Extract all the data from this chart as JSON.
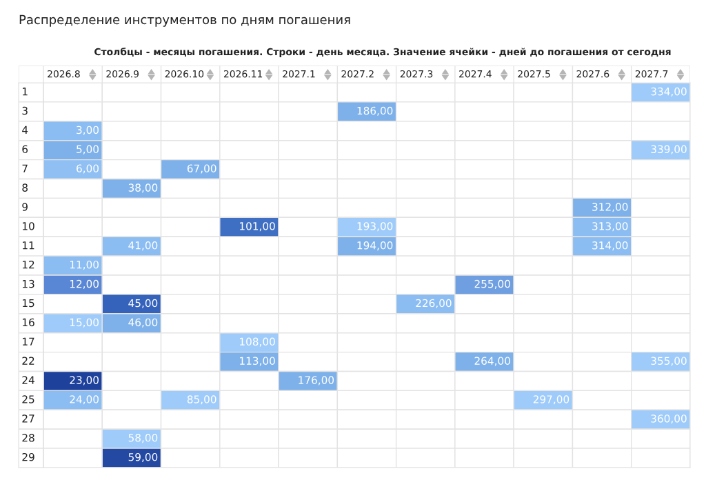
{
  "chart_data": {
    "type": "heatmap",
    "title": "Распределение инструментов по дням погашения",
    "subtitle": "Столбцы - месяцы погашения. Строки - день месяца. Значение ячейки - дней до погашения от сегодня",
    "categories": [
      "2026.8",
      "2026.9",
      "2026.10",
      "2026.11",
      "2027.1",
      "2027.2",
      "2027.3",
      "2027.4",
      "2027.5",
      "2027.6",
      "2027.7"
    ],
    "y_categories": [
      "1",
      "3",
      "4",
      "6",
      "7",
      "8",
      "9",
      "10",
      "11",
      "12",
      "13",
      "15",
      "16",
      "17",
      "22",
      "24",
      "25",
      "27",
      "28",
      "29"
    ],
    "cells": [
      [
        null,
        null,
        null,
        null,
        null,
        null,
        null,
        null,
        null,
        null,
        334
      ],
      [
        null,
        null,
        null,
        null,
        null,
        186,
        null,
        null,
        null,
        null,
        null
      ],
      [
        3,
        null,
        null,
        null,
        null,
        null,
        null,
        null,
        null,
        null,
        null
      ],
      [
        5,
        null,
        null,
        null,
        null,
        null,
        null,
        null,
        null,
        null,
        339
      ],
      [
        6,
        null,
        67,
        null,
        null,
        null,
        null,
        null,
        null,
        null,
        null
      ],
      [
        null,
        38,
        null,
        null,
        null,
        null,
        null,
        null,
        null,
        null,
        null
      ],
      [
        null,
        null,
        null,
        null,
        null,
        null,
        null,
        null,
        null,
        312,
        null
      ],
      [
        null,
        null,
        null,
        101,
        null,
        193,
        null,
        null,
        null,
        313,
        null
      ],
      [
        null,
        41,
        null,
        null,
        null,
        194,
        null,
        null,
        null,
        314,
        null
      ],
      [
        11,
        null,
        null,
        null,
        null,
        null,
        null,
        null,
        null,
        null,
        null
      ],
      [
        12,
        null,
        null,
        null,
        null,
        null,
        null,
        255,
        null,
        null,
        null
      ],
      [
        null,
        45,
        null,
        null,
        null,
        null,
        226,
        null,
        null,
        null,
        null
      ],
      [
        15,
        46,
        null,
        null,
        null,
        null,
        null,
        null,
        null,
        null,
        null
      ],
      [
        null,
        null,
        null,
        108,
        null,
        null,
        null,
        null,
        null,
        null,
        null
      ],
      [
        null,
        null,
        null,
        113,
        null,
        null,
        null,
        264,
        null,
        null,
        355
      ],
      [
        23,
        null,
        null,
        null,
        176,
        null,
        null,
        null,
        null,
        null,
        null
      ],
      [
        24,
        null,
        85,
        null,
        null,
        null,
        null,
        null,
        297,
        null,
        null
      ],
      [
        null,
        null,
        null,
        null,
        null,
        null,
        null,
        null,
        null,
        null,
        360
      ],
      [
        null,
        58,
        null,
        null,
        null,
        null,
        null,
        null,
        null,
        null,
        null
      ],
      [
        null,
        59,
        null,
        null,
        null,
        null,
        null,
        null,
        null,
        null,
        null
      ]
    ],
    "cell_labels": [
      [
        null,
        null,
        null,
        null,
        null,
        null,
        null,
        null,
        null,
        null,
        "334,00"
      ],
      [
        null,
        null,
        null,
        null,
        null,
        "186,00",
        null,
        null,
        null,
        null,
        null
      ],
      [
        "3,00",
        null,
        null,
        null,
        null,
        null,
        null,
        null,
        null,
        null,
        null
      ],
      [
        "5,00",
        null,
        null,
        null,
        null,
        null,
        null,
        null,
        null,
        null,
        "339,00"
      ],
      [
        "6,00",
        null,
        "67,00",
        null,
        null,
        null,
        null,
        null,
        null,
        null,
        null
      ],
      [
        null,
        "38,00",
        null,
        null,
        null,
        null,
        null,
        null,
        null,
        null,
        null
      ],
      [
        null,
        null,
        null,
        null,
        null,
        null,
        null,
        null,
        null,
        "312,00",
        null
      ],
      [
        null,
        null,
        null,
        "101,00",
        null,
        "193,00",
        null,
        null,
        null,
        "313,00",
        null
      ],
      [
        null,
        "41,00",
        null,
        null,
        null,
        "194,00",
        null,
        null,
        null,
        "314,00",
        null
      ],
      [
        "11,00",
        null,
        null,
        null,
        null,
        null,
        null,
        null,
        null,
        null,
        null
      ],
      [
        "12,00",
        null,
        null,
        null,
        null,
        null,
        null,
        "255,00",
        null,
        null,
        null
      ],
      [
        null,
        "45,00",
        null,
        null,
        null,
        null,
        "226,00",
        null,
        null,
        null,
        null
      ],
      [
        "15,00",
        "46,00",
        null,
        null,
        null,
        null,
        null,
        null,
        null,
        null,
        null
      ],
      [
        null,
        null,
        null,
        "108,00",
        null,
        null,
        null,
        null,
        null,
        null,
        null
      ],
      [
        null,
        null,
        null,
        "113,00",
        null,
        null,
        null,
        "264,00",
        null,
        null,
        "355,00"
      ],
      [
        "23,00",
        null,
        null,
        null,
        "176,00",
        null,
        null,
        null,
        null,
        null,
        null
      ],
      [
        "24,00",
        null,
        "85,00",
        null,
        null,
        null,
        null,
        null,
        "297,00",
        null,
        null
      ],
      [
        null,
        null,
        null,
        null,
        null,
        null,
        null,
        null,
        null,
        null,
        "360,00"
      ],
      [
        null,
        "58,00",
        null,
        null,
        null,
        null,
        null,
        null,
        null,
        null,
        null
      ],
      [
        null,
        "59,00",
        null,
        null,
        null,
        null,
        null,
        null,
        null,
        null,
        null
      ]
    ],
    "colors": [
      [
        null,
        null,
        null,
        null,
        null,
        null,
        null,
        null,
        null,
        null,
        "#9ecbfa"
      ],
      [
        null,
        null,
        null,
        null,
        null,
        "#7eb1ea",
        null,
        null,
        null,
        null,
        null
      ],
      [
        "#8bbcf2",
        null,
        null,
        null,
        null,
        null,
        null,
        null,
        null,
        null,
        null
      ],
      [
        "#7eb1ea",
        null,
        null,
        null,
        null,
        null,
        null,
        null,
        null,
        null,
        "#9ecbfa"
      ],
      [
        "#8fbff3",
        null,
        "#7eb1ea",
        null,
        null,
        null,
        null,
        null,
        null,
        null,
        null
      ],
      [
        null,
        "#7eb1ea",
        null,
        null,
        null,
        null,
        null,
        null,
        null,
        null,
        null
      ],
      [
        null,
        null,
        null,
        null,
        null,
        null,
        null,
        null,
        null,
        "#7eb1ea",
        null
      ],
      [
        null,
        null,
        null,
        "#3f6fc3",
        null,
        "#9ecbfa",
        null,
        null,
        null,
        "#8bbcf2",
        null
      ],
      [
        null,
        "#8bbcf2",
        null,
        null,
        null,
        "#7eb1ea",
        null,
        null,
        null,
        "#8bbcf2",
        null
      ],
      [
        "#8bbcf2",
        null,
        null,
        null,
        null,
        null,
        null,
        null,
        null,
        null,
        null
      ],
      [
        "#5a87d5",
        null,
        null,
        null,
        null,
        null,
        null,
        "#6f9fe1",
        null,
        null,
        null
      ],
      [
        null,
        "#3562bb",
        null,
        null,
        null,
        null,
        "#8bbcf2",
        null,
        null,
        null,
        null
      ],
      [
        "#9ecbfa",
        "#7eb1ea",
        null,
        null,
        null,
        null,
        null,
        null,
        null,
        null,
        null
      ],
      [
        null,
        null,
        null,
        "#9ecbfa",
        null,
        null,
        null,
        null,
        null,
        null,
        null
      ],
      [
        null,
        null,
        null,
        "#7eb1ea",
        null,
        null,
        null,
        "#7eb1ea",
        null,
        null,
        "#9ecbfa"
      ],
      [
        "#1e419c",
        null,
        null,
        null,
        "#7eb1ea",
        null,
        null,
        null,
        null,
        null,
        null
      ],
      [
        "#8bbcf2",
        null,
        "#9ecbfa",
        null,
        null,
        null,
        null,
        null,
        "#9ecbfa",
        null,
        null
      ],
      [
        null,
        null,
        null,
        null,
        null,
        null,
        null,
        null,
        null,
        null,
        "#9ecbfa"
      ],
      [
        null,
        "#9ecbfa",
        null,
        null,
        null,
        null,
        null,
        null,
        null,
        null,
        null
      ],
      [
        null,
        "#2449a3",
        null,
        null,
        null,
        null,
        null,
        null,
        null,
        null,
        null
      ]
    ]
  }
}
